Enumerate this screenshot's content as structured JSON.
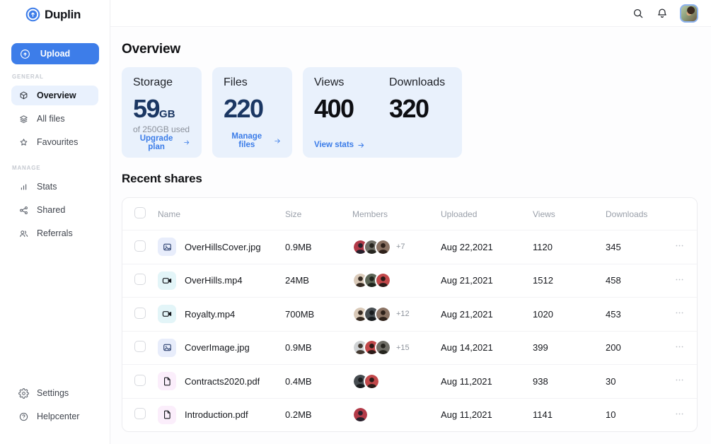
{
  "brand": {
    "name": "Duplin"
  },
  "sidebar": {
    "upload_label": "Upload",
    "sections": [
      {
        "label": "GENERAL",
        "items": [
          {
            "label": "Overview",
            "icon": "box-icon",
            "active": true
          },
          {
            "label": "All files",
            "icon": "layers-icon",
            "active": false
          },
          {
            "label": "Favourites",
            "icon": "star-icon",
            "active": false
          }
        ]
      },
      {
        "label": "MANAGE",
        "items": [
          {
            "label": "Stats",
            "icon": "bar-chart-icon",
            "active": false
          },
          {
            "label": "Shared",
            "icon": "share-icon",
            "active": false
          },
          {
            "label": "Referrals",
            "icon": "people-icon",
            "active": false
          }
        ]
      }
    ],
    "footer": [
      {
        "label": "Settings",
        "icon": "gear-icon"
      },
      {
        "label": "Helpcenter",
        "icon": "help-icon"
      }
    ]
  },
  "header": {
    "icons": [
      "search-icon",
      "bell-icon",
      "user-avatar"
    ]
  },
  "overview": {
    "title": "Overview",
    "storage_card": {
      "label": "Storage",
      "value": "59",
      "unit": "GB",
      "subtext": "of 250GB used",
      "link": "Upgrade plan"
    },
    "files_card": {
      "label": "Files",
      "value": "220",
      "link": "Manage files"
    },
    "stats_card": {
      "views_label": "Views",
      "views_value": "400",
      "downloads_label": "Downloads",
      "downloads_value": "320",
      "link": "View stats"
    }
  },
  "recent_shares": {
    "title": "Recent shares",
    "columns": [
      "Name",
      "Size",
      "Members",
      "Uploaded",
      "Views",
      "Downloads"
    ],
    "rows": [
      {
        "name": "OverHillsCover.jpg",
        "type": "image",
        "size": "0.9MB",
        "avatars": [
          0,
          1,
          2
        ],
        "extra": "+7",
        "uploaded": "Aug 22,2021",
        "views": "1120",
        "downloads": "345"
      },
      {
        "name": "OverHills.mp4",
        "type": "video",
        "size": "24MB",
        "avatars": [
          3,
          4,
          5
        ],
        "extra": "",
        "uploaded": "Aug 21,2021",
        "views": "1512",
        "downloads": "458"
      },
      {
        "name": "Royalty.mp4",
        "type": "video",
        "size": "700MB",
        "avatars": [
          3,
          7,
          2
        ],
        "extra": "+12",
        "uploaded": "Aug 21,2021",
        "views": "1020",
        "downloads": "453"
      },
      {
        "name": "CoverImage.jpg",
        "type": "image",
        "size": "0.9MB",
        "avatars": [
          6,
          5,
          1
        ],
        "extra": "+15",
        "uploaded": "Aug 14,2021",
        "views": "399",
        "downloads": "200"
      },
      {
        "name": "Contracts2020.pdf",
        "type": "pdf",
        "size": "0.4MB",
        "avatars": [
          7,
          5
        ],
        "extra": "",
        "uploaded": "Aug 11,2021",
        "views": "938",
        "downloads": "30"
      },
      {
        "name": "Introduction.pdf",
        "type": "pdf",
        "size": "0.2MB",
        "avatars": [
          0
        ],
        "extra": "",
        "uploaded": "Aug 11,2021",
        "views": "1141",
        "downloads": "10"
      }
    ]
  },
  "avatar_palette": [
    [
      "#b23a48",
      "#27202c"
    ],
    [
      "#6f6e66",
      "#26251f"
    ],
    [
      "#8a7263",
      "#2e211a"
    ],
    [
      "#d9c9b8",
      "#362b23"
    ],
    [
      "#5d6657",
      "#20251d"
    ],
    [
      "#c2484a",
      "#2b1b18"
    ],
    [
      "#cfd2d4",
      "#433931"
    ],
    [
      "#474d51",
      "#191c1e"
    ]
  ],
  "colors": {
    "accent": "#3b7ce8",
    "upload_blue": "#3d7de9",
    "card_bg": "#e9f1fc",
    "navy_number": "#1b3763",
    "dark_number": "#0d0e12"
  }
}
